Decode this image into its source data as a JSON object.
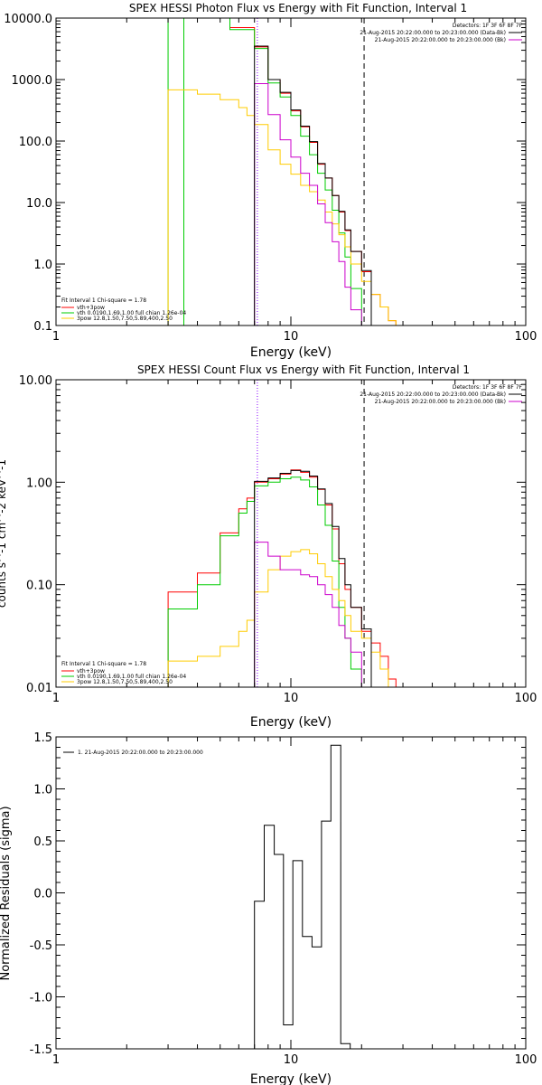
{
  "chart_data": [
    {
      "type": "line",
      "step": true,
      "title": "SPEX HESSI Photon Flux vs Energy with Fit Function, Interval 1",
      "xlabel": "Energy (keV)",
      "ylabel": "",
      "xscale": "log",
      "yscale": "log",
      "xlim": [
        1,
        100
      ],
      "ylim": [
        0.1,
        10000
      ],
      "xticks": [
        1,
        10,
        100
      ],
      "xtick_labels": [
        "1",
        "10",
        "100"
      ],
      "yticks": [
        0.1,
        1,
        10,
        100,
        1000,
        10000
      ],
      "ytick_labels": [
        "0.1",
        "1.0",
        "10.0",
        "100.0",
        "1000.0",
        "10000.0"
      ],
      "bin_edges": [
        3,
        3.5,
        4,
        4.5,
        5,
        5.5,
        6,
        6.5,
        7,
        7.5,
        8,
        8.5,
        9,
        9.5,
        10,
        10.5,
        11,
        11.5,
        12,
        12.5,
        13,
        14,
        15,
        16,
        17,
        18,
        20,
        22,
        24,
        26,
        28
      ],
      "series": [
        {
          "name": "vth+3pow",
          "color": "#ff0000",
          "values": [
            null,
            12000,
            12000,
            12000,
            12000,
            7000,
            7000,
            7000,
            3400,
            3400,
            1000,
            1000,
            600,
            600,
            310,
            310,
            170,
            170,
            95,
            95,
            42,
            25,
            13,
            7,
            3.5,
            1.6,
            0.75,
            0.32,
            0.2,
            0.12
          ]
        },
        {
          "name": "vth 0.0190,1.69,1.00  full chian 1.26e-04",
          "color": "#00cc00",
          "values": [
            null,
            12000,
            12000,
            12000,
            12000,
            6500,
            6500,
            6500,
            3200,
            3200,
            880,
            880,
            520,
            520,
            260,
            260,
            120,
            120,
            60,
            60,
            30,
            16,
            7.5,
            3.2,
            1.3,
            0.4,
            null,
            null,
            null,
            null
          ]
        },
        {
          "name": "3pow 12.8,1.50,7.50,5.89,400,2.50",
          "color": "#ffcc00",
          "values": [
            680,
            680,
            580,
            580,
            470,
            470,
            350,
            260,
            185,
            185,
            72,
            72,
            42,
            42,
            29,
            29,
            19,
            19,
            15,
            15,
            11,
            7,
            4.5,
            3,
            1.9,
            1,
            0.52,
            0.32,
            0.2,
            0.12
          ]
        },
        {
          "name": "21-Aug-2015 20:22:00.000 to 20:23:00.000 (Bk)",
          "color": "#cc00cc",
          "values": [
            null,
            null,
            null,
            null,
            null,
            null,
            null,
            null,
            860,
            860,
            270,
            270,
            105,
            105,
            55,
            55,
            30,
            30,
            19,
            19,
            9.5,
            4.7,
            2.3,
            1.1,
            0.42,
            0.18,
            null,
            null,
            null,
            null
          ]
        },
        {
          "name": "21-Aug-2015 20:22:00.000 to 20:23:00.000 (Data-Bk)",
          "color": "#000000",
          "values": [
            null,
            null,
            null,
            null,
            null,
            null,
            null,
            null,
            3500,
            3500,
            1000,
            1000,
            620,
            620,
            320,
            320,
            175,
            175,
            98,
            98,
            43,
            25,
            13,
            7.2,
            3.6,
            1.6,
            0.78,
            null,
            null,
            null
          ]
        }
      ],
      "vlines": [
        {
          "x": 7.2,
          "style": "dotted",
          "color": "#8800ff"
        },
        {
          "x": 20.5,
          "style": "dashed",
          "color": "#000000"
        },
        {
          "x": 3,
          "style": "solid",
          "color": "#00cc00"
        }
      ],
      "header_right": "Detectors: 1F 3F 6F 8F 7F",
      "legend_right": [
        {
          "text": "21-Aug-2015 20:22:00.000 to 20:23:00.000 (Data-Bk)",
          "color": "#000000"
        },
        {
          "text": "21-Aug-2015 20:22:00.000 to 20:23:00.000 (Bk)",
          "color": "#cc00cc"
        }
      ],
      "fit_label": "Fit Interval 1    Chi-square = 1.78",
      "legend_left": [
        {
          "text": "vth+3pow",
          "color": "#ff0000"
        },
        {
          "text": "vth 0.0190,1.69,1.00  full chian 1.26e-04",
          "color": "#00cc00"
        },
        {
          "text": "3pow 12.8,1.50,7.50,5.89,400,2.50",
          "color": "#ffcc00"
        }
      ]
    },
    {
      "type": "line",
      "step": true,
      "title": "SPEX HESSI Count Flux vs Energy with Fit Function, Interval 1",
      "xlabel": "Energy (keV)",
      "ylabel": "counts s^-1 cm^-2 keV^-1",
      "xscale": "log",
      "yscale": "log",
      "xlim": [
        1,
        100
      ],
      "ylim": [
        0.01,
        10
      ],
      "xticks": [
        1,
        10,
        100
      ],
      "xtick_labels": [
        "1",
        "10",
        "100"
      ],
      "yticks": [
        0.01,
        0.1,
        1,
        10
      ],
      "ytick_labels": [
        "0.01",
        "0.10",
        "1.00",
        "10.00"
      ],
      "bin_edges": [
        3,
        3.5,
        4,
        4.5,
        5,
        5.5,
        6,
        6.5,
        7,
        7.5,
        8,
        8.5,
        9,
        9.5,
        10,
        10.5,
        11,
        11.5,
        12,
        12.5,
        13,
        14,
        15,
        16,
        17,
        18,
        20,
        22,
        24,
        26,
        28
      ],
      "series": [
        {
          "name": "vth+3pow",
          "color": "#ff0000",
          "values": [
            0.085,
            0.085,
            0.13,
            0.13,
            0.32,
            0.32,
            0.55,
            0.7,
            1.0,
            1.0,
            1.08,
            1.08,
            1.2,
            1.2,
            1.32,
            1.32,
            1.25,
            1.25,
            1.12,
            1.12,
            0.85,
            0.6,
            0.35,
            0.16,
            0.09,
            0.06,
            0.035,
            0.027,
            0.02,
            0.012
          ]
        },
        {
          "name": "vth 0.0190,1.69,1.00  full chian 1.26e-04",
          "color": "#00cc00",
          "values": [
            0.058,
            0.058,
            0.1,
            0.1,
            0.3,
            0.3,
            0.5,
            0.65,
            0.92,
            0.92,
            1.0,
            1.0,
            1.08,
            1.08,
            1.12,
            1.12,
            1.05,
            1.05,
            0.9,
            0.9,
            0.6,
            0.38,
            0.17,
            0.06,
            0.03,
            0.015,
            null,
            null,
            null,
            null
          ]
        },
        {
          "name": "3pow 12.8,1.50,7.50,5.89,400,2.50",
          "color": "#ffcc00",
          "values": [
            0.018,
            0.018,
            0.02,
            0.02,
            0.025,
            0.025,
            0.035,
            0.045,
            0.085,
            0.085,
            0.14,
            0.14,
            0.19,
            0.19,
            0.21,
            0.21,
            0.22,
            0.22,
            0.2,
            0.2,
            0.16,
            0.12,
            0.09,
            0.07,
            0.05,
            0.035,
            0.03,
            0.022,
            0.015,
            0.01
          ]
        },
        {
          "name": "21-Aug-2015 20:22:00.000 to 20:23:00.000 (Bk)",
          "color": "#cc00cc",
          "values": [
            null,
            null,
            null,
            null,
            null,
            null,
            null,
            null,
            0.26,
            0.26,
            0.19,
            0.19,
            0.14,
            0.14,
            0.14,
            0.14,
            0.125,
            0.125,
            0.12,
            0.12,
            0.1,
            0.08,
            0.06,
            0.04,
            0.03,
            0.022,
            null,
            null,
            null,
            null
          ]
        },
        {
          "name": "21-Aug-2015 20:22:00.000 to 20:23:00.000 (Data-Bk)",
          "color": "#000000",
          "values": [
            null,
            null,
            null,
            null,
            null,
            null,
            null,
            null,
            1.02,
            1.02,
            1.1,
            1.1,
            1.22,
            1.22,
            1.3,
            1.3,
            1.28,
            1.28,
            1.15,
            1.15,
            0.86,
            0.62,
            0.37,
            0.18,
            0.1,
            0.06,
            0.037,
            null,
            null,
            null
          ]
        }
      ],
      "vlines": [
        {
          "x": 7.2,
          "style": "dotted",
          "color": "#8800ff"
        },
        {
          "x": 20.5,
          "style": "dashed",
          "color": "#000000"
        }
      ],
      "header_right": "Detectors: 1F 3F 6F 8F 7F",
      "legend_right": [
        {
          "text": "21-Aug-2015 20:22:00.000 to 20:23:00.000 (Data-Bk)",
          "color": "#000000"
        },
        {
          "text": "21-Aug-2015 20:22:00.000 to 20:23:00.000 (Bk)",
          "color": "#cc00cc"
        }
      ],
      "fit_label": "Fit Interval 1    Chi-square = 1.78",
      "legend_left": [
        {
          "text": "vth+3pow",
          "color": "#ff0000"
        },
        {
          "text": "vth 0.0190,1.69,1.00  full chian 1.26e-04",
          "color": "#00cc00"
        },
        {
          "text": "3pow 12.8,1.50,7.50,5.89,400,2.50",
          "color": "#ffcc00"
        }
      ]
    },
    {
      "type": "line",
      "step": true,
      "title": "",
      "xlabel": "Energy (keV)",
      "ylabel": "Normalized Residuals (sigma)",
      "xscale": "log",
      "yscale": "linear",
      "xlim": [
        1,
        100
      ],
      "ylim": [
        -1.5,
        1.5
      ],
      "xticks": [
        1,
        10,
        100
      ],
      "xtick_labels": [
        "1",
        "10",
        "100"
      ],
      "yticks": [
        -1.5,
        -1.0,
        -0.5,
        0.0,
        0.5,
        1.0,
        1.5
      ],
      "ytick_labels": [
        "-1.5",
        "-1.0",
        "-0.5",
        "0.0",
        "0.5",
        "1.0",
        "1.5"
      ],
      "bin_edges": [
        7,
        7.7,
        8.5,
        9.3,
        10.2,
        11.2,
        12.3,
        13.5,
        14.8,
        16.3,
        17.9,
        19.7
      ],
      "series": [
        {
          "name": "1. 21-Aug-2015 20:22:00.000 to 20:23:00.000",
          "color": "#000000",
          "values": [
            -0.08,
            0.65,
            0.37,
            -1.27,
            0.31,
            -0.42,
            -0.52,
            0.69,
            1.42,
            -1.45,
            null
          ]
        }
      ],
      "legend_left": [
        {
          "text": "1. 21-Aug-2015 20:22:00.000 to 20:23:00.000",
          "color": "#000000"
        }
      ]
    }
  ]
}
